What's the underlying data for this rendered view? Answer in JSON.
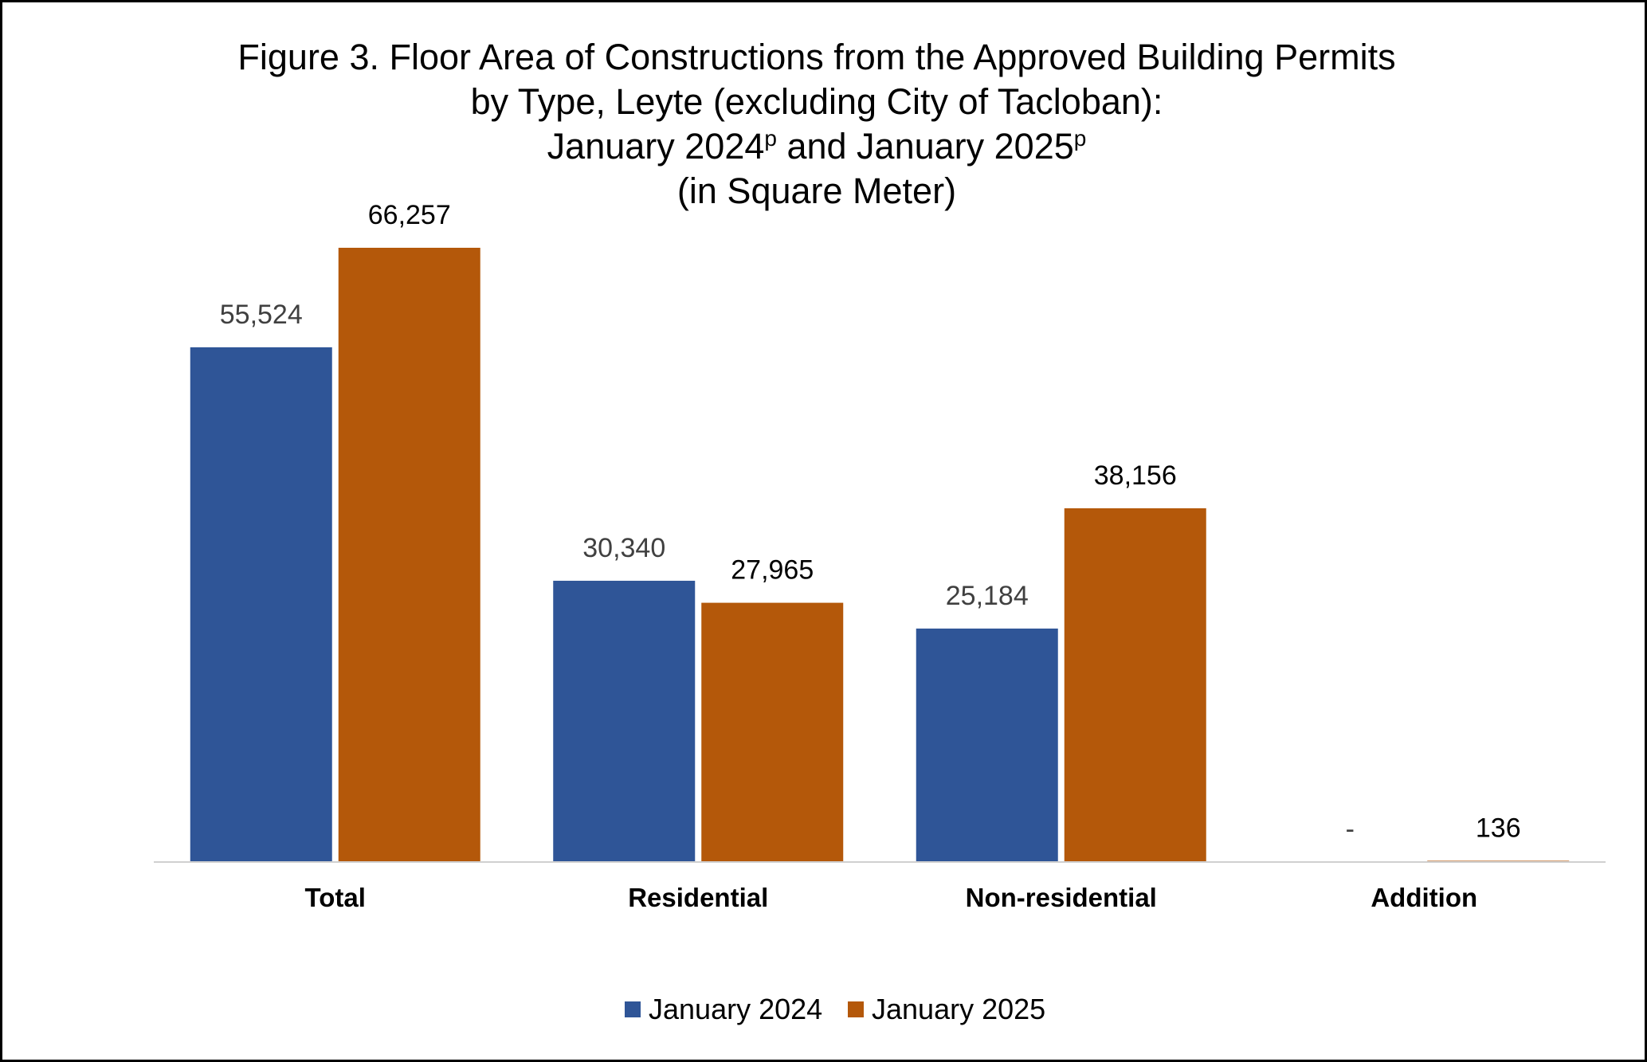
{
  "chart_data": {
    "type": "bar",
    "title_lines": [
      "Figure 3. Floor Area of Constructions from the Approved Building Permits",
      "by Type, Leyte (excluding City of Tacloban):"
    ],
    "title_line3": {
      "part1": "January 2024",
      "sup1": "p",
      "part2": " and January 2025",
      "sup2": "p"
    },
    "title_line4": "(in Square Meter)",
    "categories": [
      "Total",
      "Residential",
      "Non-residential",
      "Addition"
    ],
    "series": [
      {
        "name": "January 2024",
        "color": "#2f5597",
        "label_color": "#404040",
        "values": [
          55524,
          30340,
          25184,
          0
        ],
        "labels": [
          "55,524",
          "30,340",
          "25,184",
          "-"
        ]
      },
      {
        "name": "January 2025",
        "color": "#b4580a",
        "label_color": "#000000",
        "values": [
          66257,
          27965,
          38156,
          136
        ],
        "labels": [
          "66,257",
          "27,965",
          "38,156",
          "136"
        ]
      }
    ],
    "ylim": [
      0,
      66257
    ],
    "grid": false,
    "legend_position": "bottom"
  }
}
